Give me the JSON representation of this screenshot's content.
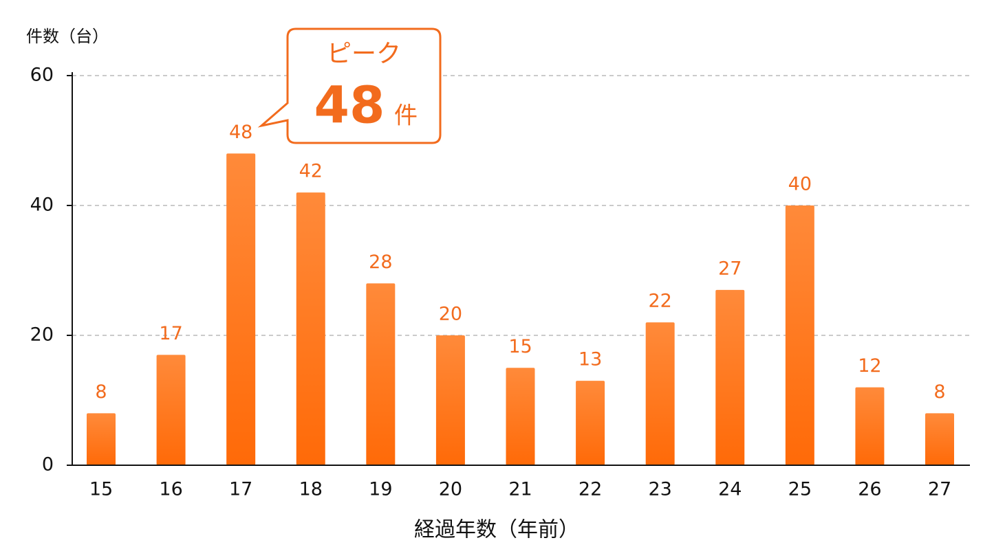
{
  "chart_data": {
    "type": "bar",
    "y_label": "件数（台）",
    "x_label": "経過年数（年前）",
    "categories": [
      "15",
      "16",
      "17",
      "18",
      "19",
      "20",
      "21",
      "22",
      "23",
      "24",
      "25",
      "26",
      "27"
    ],
    "values": [
      8,
      17,
      48,
      42,
      28,
      20,
      15,
      13,
      22,
      27,
      40,
      12,
      8
    ],
    "color": "#ff6f12",
    "ylim": [
      0,
      60
    ],
    "yticks": [
      0,
      20,
      40,
      60
    ],
    "grid": true,
    "annotation": {
      "title": "ピーク",
      "value": 48,
      "unit": "件"
    }
  }
}
